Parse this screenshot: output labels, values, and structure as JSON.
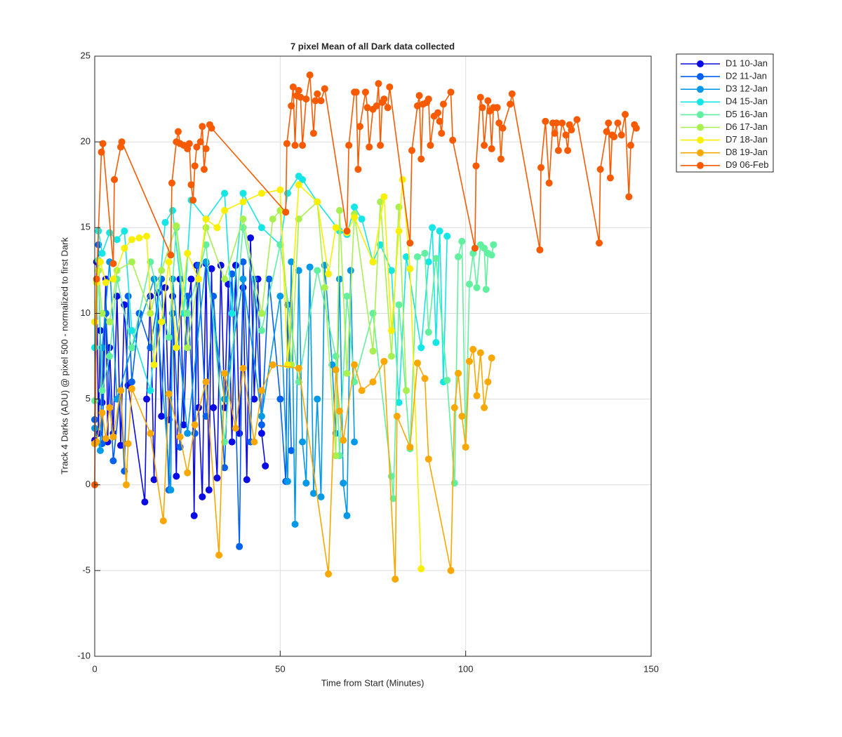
{
  "chart_data": {
    "type": "line",
    "title": "7 pixel Mean of all Dark data collected",
    "x_label": "Time from Start (Minutes)",
    "y_label": "Track 4 Darks (ADU) @ pixel 500 - normalized to first Dark",
    "xlim": [
      0,
      150
    ],
    "xticks": [
      0,
      50,
      100,
      150
    ],
    "ylim": [
      -10,
      25
    ],
    "yticks": [
      -10,
      -5,
      0,
      5,
      10,
      15,
      20,
      25
    ],
    "grid": true,
    "legend": "outside-right",
    "series": [
      {
        "name": "D1 10-Jan",
        "color": "#0a0ae6",
        "x": [
          0,
          0.5,
          1,
          1.5,
          2,
          3,
          3.5,
          4,
          5,
          6,
          7,
          8,
          9,
          13.5,
          14,
          15,
          16,
          17,
          18,
          19,
          20,
          21,
          22,
          23,
          24,
          25,
          26,
          26.8,
          27.5,
          28,
          29,
          30,
          30.8,
          31.5,
          32,
          33,
          34,
          35,
          36,
          37,
          38,
          39,
          40,
          41,
          42,
          43,
          44,
          45,
          46
        ],
        "values": [
          2.6,
          13,
          3,
          9,
          4.8,
          12,
          2.5,
          8,
          3,
          11,
          2.3,
          10.5,
          5.8,
          -1,
          5,
          11,
          0.3,
          11.2,
          4,
          11.5,
          3.8,
          11,
          0.5,
          12,
          3.5,
          10,
          12,
          -1.8,
          12.8,
          4.5,
          -0.7,
          12.9,
          -0.3,
          12.6,
          4.5,
          0.4,
          12.8,
          4.5,
          11.7,
          2.5,
          12.8,
          3,
          11.5,
          0.3,
          14.4,
          5,
          12,
          3,
          1.1
        ]
      },
      {
        "name": "D2 11-Jan",
        "color": "#0060f0",
        "x": [
          0,
          1,
          2,
          3,
          5,
          7,
          8,
          9,
          10,
          12,
          15,
          18,
          20,
          21,
          23,
          25,
          27,
          28,
          30,
          32,
          35,
          37,
          39,
          40,
          42,
          43,
          45,
          47,
          50,
          51.5,
          52,
          53
        ],
        "values": [
          3.8,
          14,
          2.4,
          10,
          1.4,
          5.5,
          0.8,
          11,
          6,
          10,
          8,
          12,
          -0.3,
          10,
          2.2,
          11,
          3,
          12.8,
          4,
          11,
          1,
          12.3,
          -3.6,
          13,
          2.5,
          12,
          3.5,
          12,
          5,
          0.2,
          10.5,
          2
        ]
      },
      {
        "name": "D3 12-Jan",
        "color": "#0098e8",
        "x": [
          0,
          1.5,
          2,
          4,
          6,
          10,
          16,
          20.5,
          21,
          25,
          30,
          35,
          40,
          45,
          50,
          52,
          53,
          54,
          55,
          56,
          57,
          58,
          59,
          60,
          61,
          62,
          64,
          65,
          66,
          67,
          68,
          69,
          70
        ],
        "values": [
          3.3,
          2,
          8,
          13,
          5,
          8,
          12,
          -0.3,
          12,
          3,
          13,
          5,
          12,
          4,
          11,
          0.2,
          13,
          -2.3,
          12.5,
          2.5,
          0.1,
          12.7,
          -0.5,
          5,
          -0.7,
          12.8,
          7,
          3,
          12,
          0.1,
          -1.8,
          12.5,
          2.5
        ]
      },
      {
        "name": "D4 15-Jan",
        "color": "#14e6e6",
        "x": [
          0,
          1,
          2,
          4,
          6,
          8,
          10,
          15,
          19,
          21,
          24,
          26,
          30,
          35,
          37,
          40,
          45,
          50,
          52,
          55,
          56,
          60,
          66,
          68,
          70,
          72,
          75,
          77,
          80,
          82,
          84,
          88,
          90,
          91,
          92,
          93,
          94,
          95
        ],
        "values": [
          8,
          14.8,
          13.5,
          14.7,
          14.3,
          14.8,
          9,
          5.5,
          15.3,
          16,
          10,
          16.6,
          15.5,
          17,
          10,
          17,
          15,
          14,
          17,
          18,
          17.8,
          16.5,
          14.8,
          14.6,
          16.2,
          15.5,
          13,
          14,
          12.5,
          4.8,
          13.3,
          8,
          13,
          15,
          8.3,
          14.8,
          6,
          14.5
        ]
      },
      {
        "name": "D5 16-Jan",
        "color": "#60f0a0",
        "x": [
          0,
          1,
          2,
          4,
          6,
          10,
          15,
          20,
          22,
          25,
          30,
          35,
          40,
          45,
          50,
          55,
          60,
          65,
          66,
          68,
          70,
          75,
          80,
          80.5,
          82,
          85,
          87,
          89,
          90,
          92,
          95,
          97,
          98,
          99,
          100,
          101,
          102,
          103,
          104,
          105,
          105.5,
          106,
          107,
          107.5
        ],
        "values": [
          4.9,
          13.1,
          5.5,
          7.5,
          12,
          8,
          13,
          8.6,
          15,
          10,
          14,
          2.5,
          15,
          9,
          14,
          6,
          12.5,
          7.5,
          1.7,
          11,
          6,
          10,
          0.5,
          -0.8,
          10.5,
          2.1,
          13.3,
          13.5,
          8.9,
          13.2,
          6.1,
          0.1,
          13.3,
          14.2,
          2.2,
          11.7,
          13.5,
          11.5,
          14,
          13.8,
          11.4,
          13.5,
          13.4,
          14
        ]
      },
      {
        "name": "D6 17-Jan",
        "color": "#a8f050",
        "x": [
          0,
          1,
          2,
          4,
          6,
          10,
          15,
          18,
          22,
          25,
          30,
          35,
          40,
          45,
          48,
          50,
          53,
          55,
          60,
          62,
          65,
          66,
          68,
          70,
          75,
          77,
          80,
          82,
          84
        ],
        "values": [
          9.5,
          12.5,
          10,
          9.5,
          12.5,
          13,
          10,
          12.5,
          15.1,
          8,
          15,
          12,
          15.5,
          10,
          15.5,
          16,
          7,
          15.5,
          16.5,
          11.5,
          1.7,
          16,
          6.5,
          15.8,
          7.8,
          16.5,
          7.5,
          16.2,
          5.5
        ]
      },
      {
        "name": "D7 18-Jan",
        "color": "#f8f000",
        "x": [
          0,
          0.5,
          1.5,
          3,
          5,
          8,
          10,
          12,
          14,
          16,
          18,
          20,
          22,
          25,
          28,
          30,
          33,
          35,
          40,
          45,
          50,
          52,
          55,
          60,
          63,
          65,
          68,
          70,
          75,
          78,
          80,
          82,
          83,
          85,
          88
        ],
        "values": [
          9.5,
          11.8,
          13,
          11.8,
          12,
          13.8,
          14.3,
          14.4,
          14.5,
          7,
          9.5,
          13,
          8,
          13.5,
          12,
          15.5,
          15,
          16,
          16.5,
          17,
          17.2,
          7,
          17.5,
          16.5,
          12.3,
          15,
          14.7,
          15.6,
          13,
          16.8,
          9,
          14.8,
          17.8,
          12.6,
          -4.9
        ]
      },
      {
        "name": "D8 19-Jan",
        "color": "#f8a800",
        "x": [
          0,
          0.5,
          2,
          3,
          4,
          5,
          7,
          8.5,
          9,
          10,
          15,
          18.5,
          20,
          23,
          25,
          27,
          30,
          33.5,
          35,
          38,
          40,
          43,
          45,
          48,
          55,
          63,
          65,
          66,
          67,
          70,
          72,
          75,
          78,
          81,
          81.5,
          85,
          87,
          89,
          90,
          96,
          97,
          98,
          99,
          100,
          101,
          102,
          103,
          104,
          105,
          106,
          107
        ],
        "values": [
          2.4,
          2.5,
          4.2,
          2.7,
          4.5,
          2.8,
          5.5,
          0,
          2.4,
          5.6,
          3,
          -2.1,
          5.3,
          2.8,
          0.7,
          3.5,
          6,
          -4.1,
          6.5,
          3.3,
          6.8,
          2.5,
          5.5,
          7,
          6.8,
          -5.2,
          6.7,
          4.3,
          2.6,
          7,
          5.5,
          6,
          7.2,
          -5.5,
          4,
          2.2,
          7.1,
          6.2,
          1.5,
          -5,
          4.5,
          6.5,
          4,
          2.2,
          7.2,
          7.9,
          5.2,
          7.7,
          4.5,
          6,
          7.4
        ]
      },
      {
        "name": "D9 06-Feb",
        "color": "#f85a00",
        "x": [
          0,
          0.5,
          1.8,
          2.2,
          5,
          5.3,
          7,
          7.3,
          20.5,
          20.8,
          22,
          22.5,
          23,
          24,
          25,
          25.5,
          26,
          26.5,
          27,
          27.5,
          28.5,
          29,
          29.5,
          30,
          31,
          31.5,
          51.5,
          51.8,
          53,
          53.5,
          54,
          54.5,
          55,
          55.5,
          56,
          57,
          58,
          59,
          59.5,
          60,
          61,
          62,
          68,
          68.5,
          70,
          70.5,
          71,
          71.5,
          73,
          73.5,
          74,
          75,
          76,
          76.5,
          77,
          77.5,
          78,
          79,
          79.5,
          85,
          85.5,
          87,
          87.5,
          88,
          88.5,
          89.5,
          90,
          90.5,
          91.5,
          92.5,
          93,
          93.5,
          94,
          96,
          96.5,
          102.5,
          102.8,
          104,
          104.5,
          105,
          106,
          106.5,
          107,
          107.5,
          108.5,
          109,
          109.5,
          110,
          112,
          112.5,
          120,
          120.3,
          121.5,
          122.5,
          123.5,
          124,
          124.5,
          125,
          126,
          127,
          127.5,
          128,
          128.5,
          130,
          136,
          136.3,
          138,
          138.5,
          139,
          139.5,
          140,
          141,
          142,
          143,
          144,
          144.5,
          145.5,
          146
        ],
        "values": [
          0,
          12,
          19.4,
          19.9,
          12.9,
          17.8,
          19.7,
          20,
          13.4,
          17.6,
          20,
          20.6,
          19.9,
          19.8,
          19.6,
          19.9,
          17.5,
          16.6,
          18.6,
          19.7,
          20,
          20.9,
          18.4,
          19.6,
          21,
          20.8,
          15.9,
          19.9,
          22.1,
          23.2,
          19.8,
          22.7,
          23,
          22.6,
          19.8,
          22.5,
          23.9,
          20.5,
          22.4,
          22.8,
          22.4,
          23.1,
          14.8,
          19.8,
          22.9,
          22.9,
          18.4,
          20.9,
          22.9,
          22,
          19.7,
          21.9,
          22.1,
          23.4,
          19.8,
          22.3,
          22.5,
          22,
          23.2,
          14.1,
          19.5,
          22.1,
          22.7,
          19,
          22.2,
          22.3,
          22.5,
          19.8,
          21.5,
          21.7,
          21.2,
          20.5,
          22.2,
          22.9,
          20.1,
          13.8,
          18.6,
          22.6,
          22,
          19.8,
          22.4,
          21.8,
          19.6,
          22,
          22,
          21.1,
          19,
          20.8,
          22.2,
          22.8,
          13.7,
          18.5,
          21.2,
          17.6,
          21.1,
          20.5,
          21.1,
          19.5,
          21.1,
          20.4,
          19.5,
          21,
          20.7,
          21.3,
          14.1,
          18.4,
          20.6,
          21.1,
          17.9,
          20.4,
          20.3,
          21.1,
          20.4,
          21.6,
          16.8,
          19.8,
          21,
          20.8
        ]
      }
    ]
  }
}
